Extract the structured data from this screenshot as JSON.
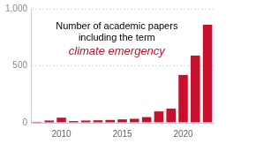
{
  "chart_data": {
    "type": "bar",
    "title": "Number of academic papers including the term",
    "subtitle": "climate emergency",
    "categories": [
      null,
      null,
      "2010",
      null,
      null,
      null,
      null,
      "2015",
      null,
      null,
      null,
      null,
      "2020",
      null,
      null
    ],
    "values": [
      8,
      20,
      45,
      15,
      20,
      22,
      25,
      30,
      35,
      50,
      100,
      125,
      420,
      590,
      860
    ],
    "color": "#c8102e",
    "ylim": [
      0,
      1000
    ],
    "yticks": [
      0,
      500,
      1000
    ],
    "grid": true
  }
}
